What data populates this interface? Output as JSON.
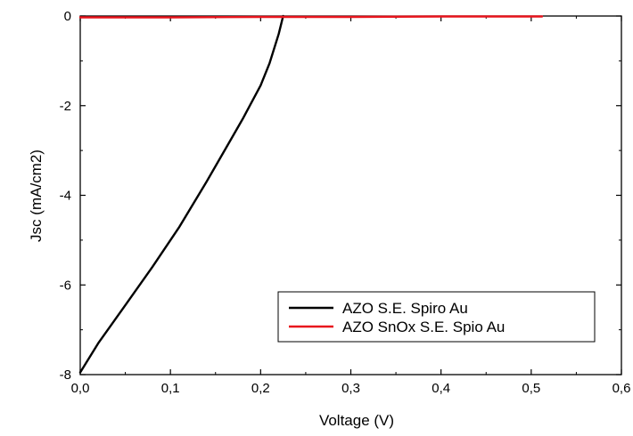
{
  "chart_data": {
    "type": "line",
    "xlabel": "Voltage (V)",
    "ylabel": "Jsc (mA/cm2)",
    "xlim": [
      0.0,
      0.6
    ],
    "ylim": [
      -8,
      0
    ],
    "x_ticks": [
      0.0,
      0.1,
      0.2,
      0.3,
      0.4,
      0.5,
      0.6
    ],
    "x_tick_labels": [
      "0,0",
      "0,1",
      "0,2",
      "0,3",
      "0,4",
      "0,5",
      "0,6"
    ],
    "y_ticks": [
      -8,
      -6,
      -4,
      -2,
      0
    ],
    "y_tick_labels": [
      "-8",
      "-6",
      "-4",
      "-2",
      "0"
    ],
    "grid": false,
    "legend_position": "bottom-right",
    "series": [
      {
        "name": "AZO S.E. Spiro Au",
        "color": "#000000",
        "x": [
          0.0,
          0.02,
          0.05,
          0.08,
          0.11,
          0.14,
          0.17,
          0.18,
          0.2,
          0.21,
          0.22,
          0.225
        ],
        "y": [
          -7.95,
          -7.3,
          -6.45,
          -5.6,
          -4.7,
          -3.7,
          -2.65,
          -2.3,
          -1.55,
          -1.05,
          -0.4,
          0.0
        ]
      },
      {
        "name": "AZO SnOx S.E. Spio Au",
        "color": "#e8141c",
        "x": [
          0.0,
          0.1,
          0.2,
          0.3,
          0.4,
          0.5,
          0.512
        ],
        "y": [
          -0.03,
          -0.03,
          -0.02,
          -0.02,
          -0.01,
          -0.01,
          -0.01
        ]
      }
    ]
  }
}
